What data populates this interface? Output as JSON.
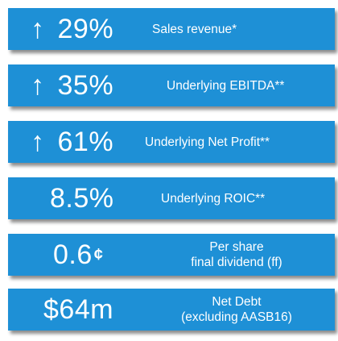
{
  "colors": {
    "banner": "#1e90d6",
    "text": "#ffffff"
  },
  "items": [
    {
      "icon": "up-arrow-icon",
      "arrow": "↑",
      "value": "29%",
      "label": "Sales revenue*"
    },
    {
      "icon": "up-arrow-icon",
      "arrow": "↑",
      "value": "35%",
      "label": "Underlying EBITDA**"
    },
    {
      "icon": "up-arrow-icon",
      "arrow": "↑",
      "value": "61%",
      "label": "Underlying Net Profit**"
    },
    {
      "value": "8.5%",
      "label": "Underlying ROIC**"
    },
    {
      "value": "0.6",
      "unit": "¢",
      "label_line1": "Per share",
      "label_line2": "final dividend (ff)"
    },
    {
      "value": "$64m",
      "label_line1": "Net Debt",
      "label_line2": "(excluding AASB16)"
    }
  ]
}
